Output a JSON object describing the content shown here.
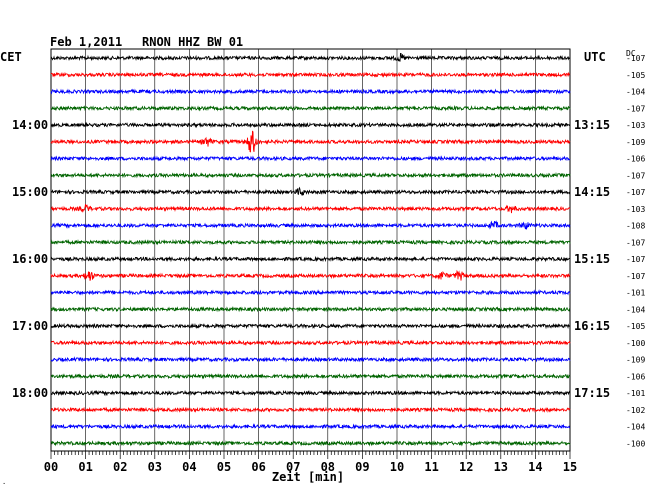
{
  "header": {
    "date": "Feb 1,2011",
    "station": "RNON HHZ BW 01",
    "left_tz": "CET",
    "right_tz": "UTC",
    "dc_label": "DC"
  },
  "chart_data": {
    "type": "line",
    "title": "Feb 1,2011   RNON HHZ BW 01",
    "xlabel": "Zeit [min]",
    "x_ticks": [
      "00",
      "01",
      "02",
      "03",
      "04",
      "05",
      "06",
      "07",
      "08",
      "09",
      "10",
      "11",
      "12",
      "13",
      "14",
      "15"
    ],
    "xlim": [
      0,
      15
    ],
    "grid": true,
    "trace_colors": [
      "#000000",
      "#ff0000",
      "#0000ff",
      "#006400"
    ],
    "left_time_labels": [
      {
        "trace": 4,
        "label": "14:00"
      },
      {
        "trace": 8,
        "label": "15:00"
      },
      {
        "trace": 12,
        "label": "16:00"
      },
      {
        "trace": 16,
        "label": "17:00"
      },
      {
        "trace": 20,
        "label": "18:00"
      }
    ],
    "right_time_labels": [
      {
        "trace": 4,
        "label": "13:15"
      },
      {
        "trace": 8,
        "label": "14:15"
      },
      {
        "trace": 12,
        "label": "15:15"
      },
      {
        "trace": 16,
        "label": "16:15"
      },
      {
        "trace": 20,
        "label": "17:15"
      }
    ],
    "dc_offsets": [
      -107,
      -105,
      -104,
      -107,
      -103,
      -109,
      -106,
      -107,
      -107,
      -103,
      -108,
      -107,
      -107,
      -107,
      -101,
      -104,
      -105,
      -100,
      -109,
      -106,
      -101,
      -102,
      -104,
      -100
    ],
    "events": [
      {
        "trace": 0,
        "minute": 10.1,
        "amp": 3
      },
      {
        "trace": 5,
        "minute": 4.5,
        "amp": 4
      },
      {
        "trace": 5,
        "minute": 5.8,
        "amp": 12
      },
      {
        "trace": 8,
        "minute": 7.2,
        "amp": 3
      },
      {
        "trace": 9,
        "minute": 1.0,
        "amp": 3
      },
      {
        "trace": 9,
        "minute": 13.3,
        "amp": 3
      },
      {
        "trace": 10,
        "minute": 12.8,
        "amp": 3
      },
      {
        "trace": 10,
        "minute": 13.7,
        "amp": 3
      },
      {
        "trace": 13,
        "minute": 1.1,
        "amp": 5
      },
      {
        "trace": 13,
        "minute": 11.3,
        "amp": 3
      },
      {
        "trace": 13,
        "minute": 11.8,
        "amp": 4
      }
    ]
  }
}
